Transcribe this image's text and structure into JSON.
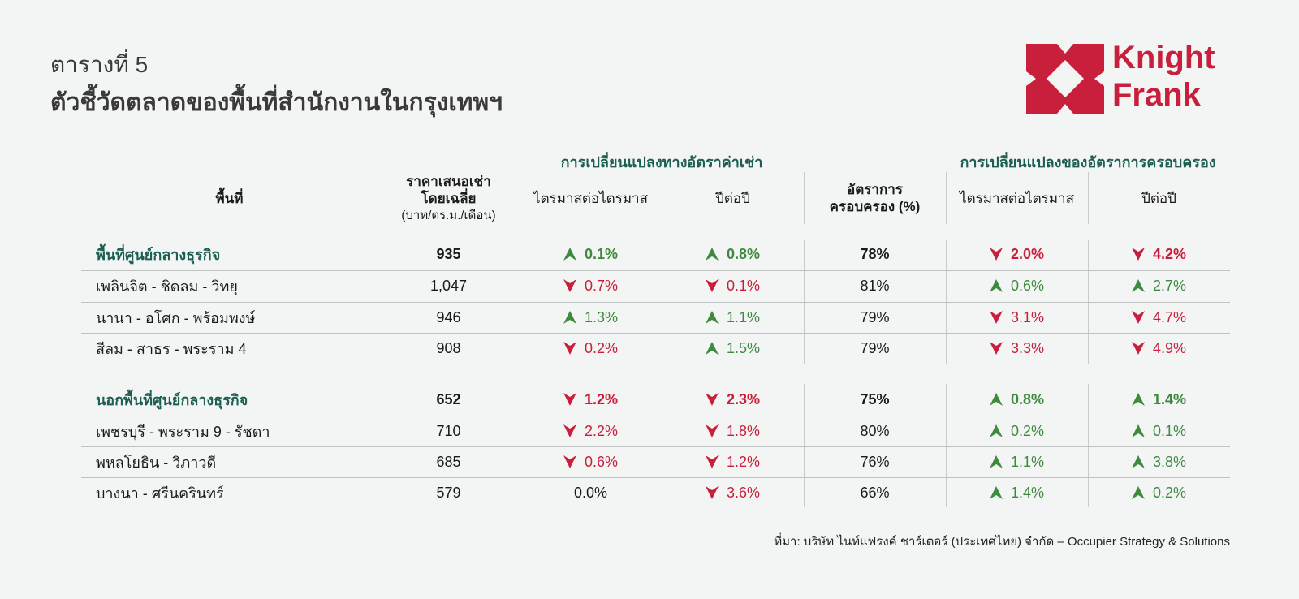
{
  "title_line1": "ตารางที่ 5",
  "title_line2": "ตัวชี้วัดตลาดของพื้นที่สำนักงานในกรุงเทพฯ",
  "logo": {
    "text_line1": "Knight",
    "text_line2": "Frank",
    "color": "#c8203c"
  },
  "colors": {
    "up": "#3f8a3f",
    "down": "#c8203c",
    "group_header": "#1c5e52",
    "background": "#f3f5f4"
  },
  "group_headers": {
    "rent_change": "การเปลี่ยนแปลงทางอัตราค่าเช่า",
    "occupancy_change": "การเปลี่ยนแปลงของอัตราการครอบครอง"
  },
  "columns": {
    "area": "พื้นที่",
    "price_line1": "ราคาเสนอเช่า",
    "price_line2": "โดยเฉลี่ย",
    "price_unit": "(บาท/ตร.ม./เดือน)",
    "rent_qoq": "ไตรมาสต่อไตรมาส",
    "rent_yoy": "ปีต่อปี",
    "occ_line1": "อัตราการ",
    "occ_line2": "ครอบครอง (%)",
    "occ_qoq": "ไตรมาสต่อไตรมาส",
    "occ_yoy": "ปีต่อปี"
  },
  "rows": [
    {
      "name": "พื้นที่ศูนย์กลางธุรกิจ",
      "group": true,
      "price": "935",
      "rent_qoq": {
        "v": "0.1%",
        "d": "up"
      },
      "rent_yoy": {
        "v": "0.8%",
        "d": "up"
      },
      "occ": "78%",
      "occ_qoq": {
        "v": "2.0%",
        "d": "down"
      },
      "occ_yoy": {
        "v": "4.2%",
        "d": "down"
      }
    },
    {
      "name": "เพลินจิต - ชิดลม - วิทยุ",
      "group": false,
      "price": "1,047",
      "rent_qoq": {
        "v": "0.7%",
        "d": "down"
      },
      "rent_yoy": {
        "v": "0.1%",
        "d": "down"
      },
      "occ": "81%",
      "occ_qoq": {
        "v": "0.6%",
        "d": "up"
      },
      "occ_yoy": {
        "v": "2.7%",
        "d": "up"
      }
    },
    {
      "name": "นานา - อโศก - พร้อมพงษ์",
      "group": false,
      "price": "946",
      "rent_qoq": {
        "v": "1.3%",
        "d": "up"
      },
      "rent_yoy": {
        "v": "1.1%",
        "d": "up"
      },
      "occ": "79%",
      "occ_qoq": {
        "v": "3.1%",
        "d": "down"
      },
      "occ_yoy": {
        "v": "4.7%",
        "d": "down"
      }
    },
    {
      "name": "สีลม - สาธร - พระราม 4",
      "group": false,
      "price": "908",
      "rent_qoq": {
        "v": "0.2%",
        "d": "down"
      },
      "rent_yoy": {
        "v": "1.5%",
        "d": "up"
      },
      "occ": "79%",
      "occ_qoq": {
        "v": "3.3%",
        "d": "down"
      },
      "occ_yoy": {
        "v": "4.9%",
        "d": "down"
      }
    },
    {
      "name": "นอกพื้นที่ศูนย์กลางธุรกิจ",
      "group": true,
      "price": "652",
      "rent_qoq": {
        "v": "1.2%",
        "d": "down"
      },
      "rent_yoy": {
        "v": "2.3%",
        "d": "down"
      },
      "occ": "75%",
      "occ_qoq": {
        "v": "0.8%",
        "d": "up"
      },
      "occ_yoy": {
        "v": "1.4%",
        "d": "up"
      }
    },
    {
      "name": "เพชรบุรี - พระราม 9 - รัชดา",
      "group": false,
      "price": "710",
      "rent_qoq": {
        "v": "2.2%",
        "d": "down"
      },
      "rent_yoy": {
        "v": "1.8%",
        "d": "down"
      },
      "occ": "80%",
      "occ_qoq": {
        "v": "0.2%",
        "d": "up"
      },
      "occ_yoy": {
        "v": "0.1%",
        "d": "up"
      }
    },
    {
      "name": "พหลโยธิน - วิภาวดี",
      "group": false,
      "price": "685",
      "rent_qoq": {
        "v": "0.6%",
        "d": "down"
      },
      "rent_yoy": {
        "v": "1.2%",
        "d": "down"
      },
      "occ": "76%",
      "occ_qoq": {
        "v": "1.1%",
        "d": "up"
      },
      "occ_yoy": {
        "v": "3.8%",
        "d": "up"
      }
    },
    {
      "name": "บางนา - ศรีนครินทร์",
      "group": false,
      "price": "579",
      "rent_qoq": {
        "v": "0.0%",
        "d": "none"
      },
      "rent_yoy": {
        "v": "3.6%",
        "d": "down"
      },
      "occ": "66%",
      "occ_qoq": {
        "v": "1.4%",
        "d": "up"
      },
      "occ_yoy": {
        "v": "0.2%",
        "d": "up"
      }
    }
  ],
  "source": "ที่มา: บริษัท ไนท์แฟรงค์ ชาร์เตอร์ (ประเทศไทย) จำกัด – Occupier Strategy & Solutions"
}
